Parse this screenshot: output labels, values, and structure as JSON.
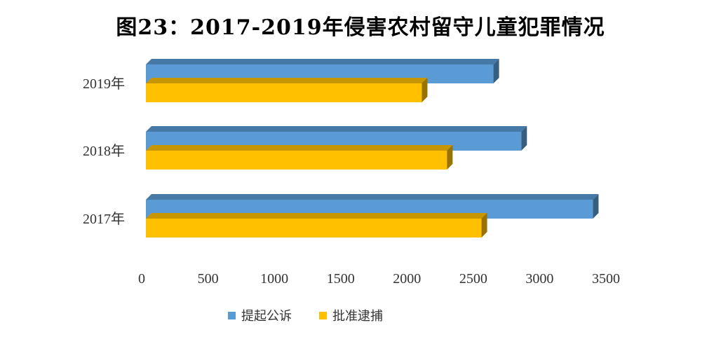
{
  "chart_data": {
    "type": "bar",
    "orientation": "horizontal",
    "title": "图23：2017-2019年侵害农村留守儿童犯罪情况",
    "categories": [
      "2017年",
      "2018年",
      "2019年"
    ],
    "series": [
      {
        "name": "提起公诉",
        "values": [
          3370,
          2830,
          2620
        ],
        "color": "#5b9bd5"
      },
      {
        "name": "批准逮捕",
        "values": [
          2530,
          2270,
          2080
        ],
        "color": "#ffc000"
      }
    ],
    "xlim": [
      0,
      3500
    ],
    "xticks": [
      0,
      500,
      1000,
      1500,
      2000,
      2500,
      3000,
      3500
    ],
    "grid": false,
    "legend": "bottom",
    "effect": "3d"
  }
}
